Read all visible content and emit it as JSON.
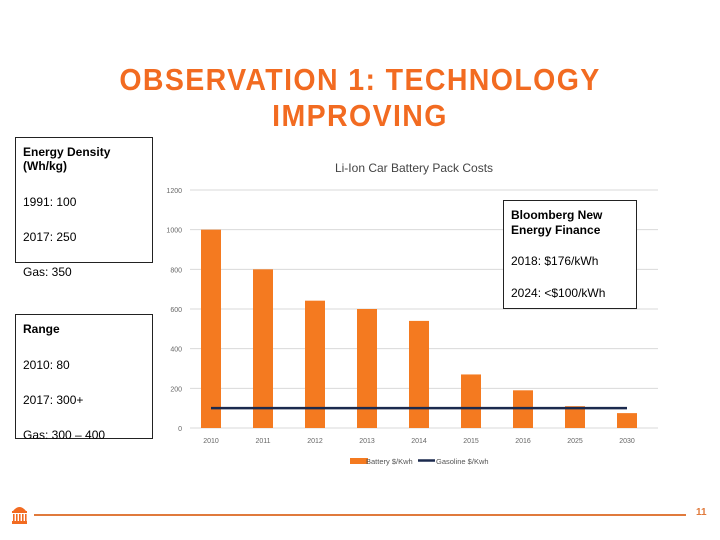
{
  "slide": {
    "title": "OBSERVATION 1: TECHNOLOGY IMPROVING",
    "page_number": "11",
    "accent_color": "#f26b21"
  },
  "boxes": {
    "energy": {
      "heading": "Energy Density (Wh/kg)",
      "lines": [
        "1991: 100",
        "2017: 250",
        "Gas: 350"
      ]
    },
    "range": {
      "heading": "Range",
      "lines": [
        "2010: 80",
        "2017: 300+",
        "Gas: 300 – 400"
      ]
    },
    "bnef": {
      "heading": "Bloomberg New Energy Finance",
      "lines": [
        "2018: $176/kWh",
        "2024: <$100/kWh"
      ]
    }
  },
  "chart_data": {
    "type": "bar",
    "title": "Li-Ion Car Battery Pack Costs",
    "xlabel": "",
    "ylabel": "",
    "categories": [
      "2010",
      "2011",
      "2012",
      "2013",
      "2014",
      "2015",
      "2016",
      "2025",
      "2030"
    ],
    "ylim": [
      0,
      1200
    ],
    "yticks": [
      "0",
      "200",
      "400",
      "600",
      "800",
      "1000",
      "1200"
    ],
    "grid": true,
    "legend_position": "bottom",
    "series": [
      {
        "name": "Battery $/Kwh",
        "type": "bar",
        "color": "#f47a20",
        "values": [
          1000,
          800,
          642,
          600,
          540,
          270,
          190,
          110,
          75
        ]
      },
      {
        "name": "Gasoline $/Kwh",
        "type": "line",
        "color": "#1b2a4e",
        "values": [
          100,
          100,
          100,
          100,
          100,
          100,
          100,
          100,
          100
        ]
      }
    ]
  }
}
